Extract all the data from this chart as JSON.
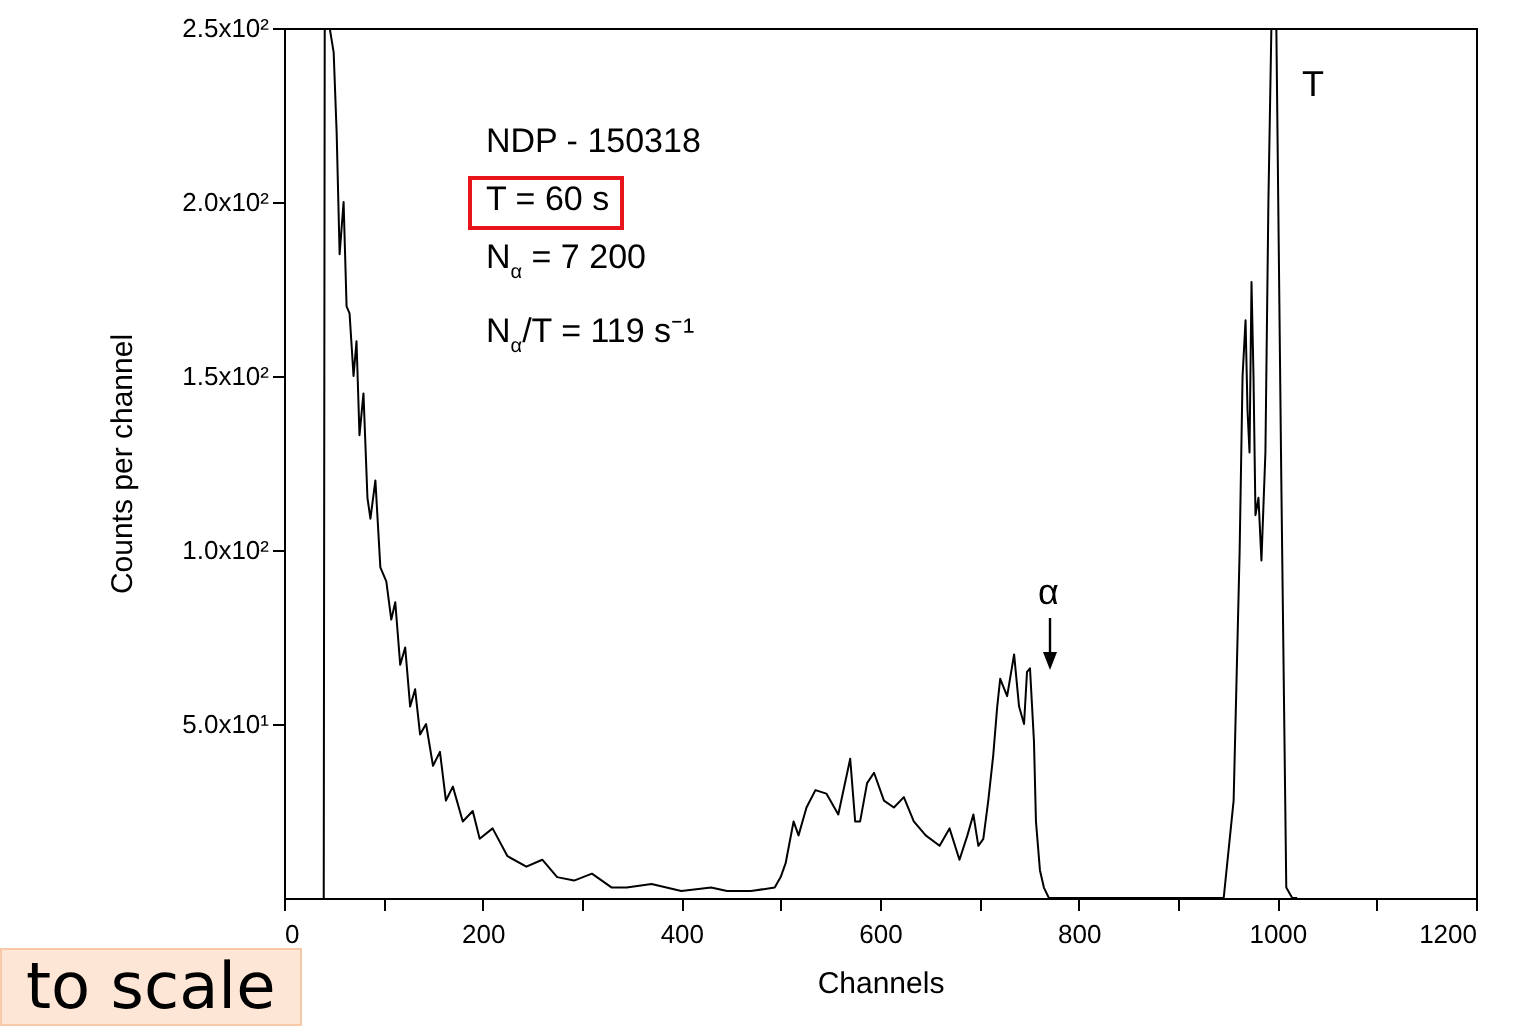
{
  "chart_data": {
    "type": "line",
    "xlabel": "Channels",
    "ylabel": "Counts per channel",
    "x": [
      40,
      41,
      46,
      50,
      53,
      56,
      60,
      63,
      66,
      70,
      73,
      76,
      80,
      84,
      87,
      92,
      97,
      103,
      108,
      112,
      117,
      122,
      127,
      132,
      137,
      143,
      150,
      157,
      163,
      170,
      180,
      190,
      197,
      210,
      225,
      244,
      260,
      275,
      292,
      310,
      330,
      345,
      370,
      400,
      430,
      446,
      470,
      494,
      500,
      505,
      513,
      518,
      526,
      535,
      546,
      558,
      570,
      575,
      580,
      587,
      594,
      604,
      614,
      624,
      634,
      646,
      660,
      670,
      680,
      688,
      694,
      699,
      704,
      709,
      714,
      718,
      721,
      728,
      735,
      740,
      745,
      748,
      751,
      755,
      757,
      761,
      765,
      770,
      775,
      800,
      850,
      900,
      946,
      956,
      962,
      965,
      968,
      970,
      972,
      974,
      976,
      978,
      981,
      984,
      988,
      991,
      994,
      999,
      1004,
      1009,
      1015,
      1020
    ],
    "series": [
      {
        "color": "#000000",
        "values": [
          0,
          250,
          250,
          243,
          220,
          185,
          200,
          170,
          168,
          150,
          160,
          133,
          145,
          115,
          109,
          120,
          95,
          91,
          80,
          85,
          67,
          72,
          55,
          60,
          47,
          50,
          38,
          42,
          28,
          32,
          22,
          25,
          17,
          20,
          12,
          9,
          11,
          6,
          5,
          7,
          3,
          3,
          4,
          2,
          3,
          2,
          2,
          3,
          6,
          10,
          22,
          18,
          26,
          31,
          30,
          24,
          40,
          22,
          22,
          33,
          36,
          28,
          26,
          29,
          22,
          18,
          15,
          20,
          11,
          18,
          24,
          15,
          17,
          28,
          41,
          55,
          63,
          58,
          70,
          55,
          50,
          65,
          66,
          45,
          22,
          8,
          3,
          0,
          0,
          0,
          0,
          0,
          0,
          28,
          99,
          150,
          166,
          140,
          128,
          177,
          150,
          110,
          115,
          97,
          128,
          200,
          250,
          250,
          120,
          3,
          0,
          0
        ]
      }
    ],
    "xlim": [
      0,
      1200
    ],
    "xticks": [
      0,
      {
        "value": 100,
        "label": null
      },
      200,
      {
        "value": 300,
        "label": null
      },
      400,
      {
        "value": 500,
        "label": null
      },
      600,
      {
        "value": 700,
        "label": null
      },
      800,
      {
        "value": 900,
        "label": null
      },
      1000,
      {
        "value": 1100,
        "label": null
      },
      1200
    ],
    "ylim": [
      0,
      250
    ],
    "yticks": [
      {
        "value": 50,
        "label": "5.0x10¹"
      },
      {
        "value": 100,
        "label": "1.0x10²"
      },
      {
        "value": 150,
        "label": "1.5x10²"
      },
      {
        "value": 200,
        "label": "2.0x10²"
      },
      {
        "value": 250,
        "label": "2.5x10²"
      }
    ],
    "grid": false,
    "marker": "none",
    "line_style": "solid",
    "annotations": [
      "NDP - 150318",
      "T = 60 s",
      "N$_{α}$ = 7 200",
      "N$_{α}$/T = 119 s⁻¹",
      "α",
      "T",
      "to scale"
    ]
  }
}
